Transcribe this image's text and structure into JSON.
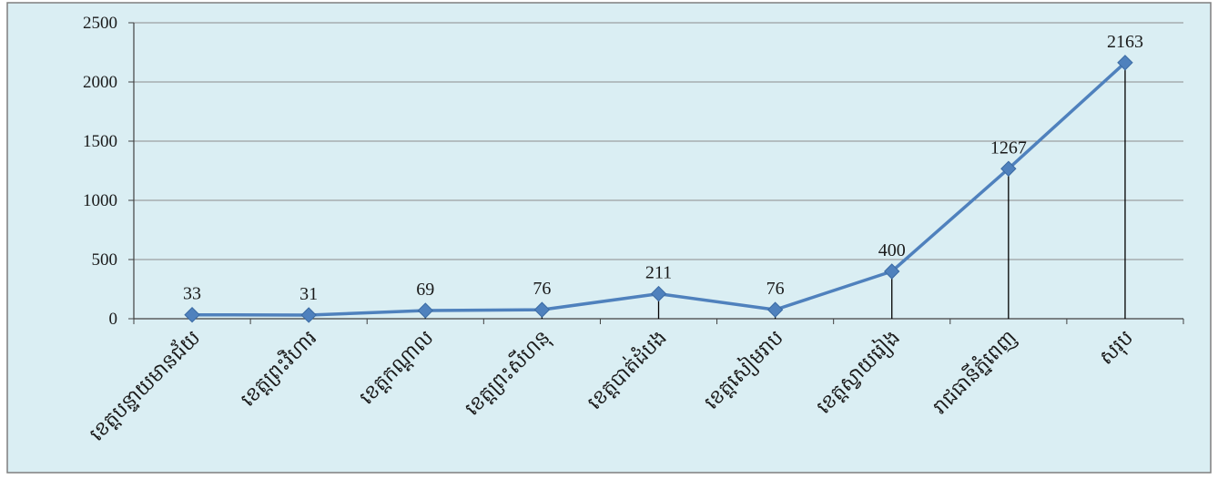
{
  "chart_data": {
    "type": "line",
    "title": "",
    "xlabel": "",
    "ylabel": "",
    "categories": [
      "ខេត្តបន្ទាយមានជ័យ",
      "ខេត្តព្រះវិហារ",
      "ខេត្តកណ្តាល",
      "ខេត្តព្រះសីហនុ",
      "ខេត្តបាត់ដំបង",
      "ខេត្តសៀមរាប",
      "ខេត្តស្វាយរៀង",
      "រាជធានីភ្នំពេញ",
      "សរុប"
    ],
    "series": [
      {
        "values": [
          33,
          31,
          69,
          76,
          211,
          76,
          400,
          1267,
          2163
        ]
      }
    ],
    "ylim": [
      0,
      2500
    ],
    "yticks": [
      0,
      500,
      1000,
      1500,
      2000,
      2500
    ],
    "grid": "horizontal",
    "drop_lines": true,
    "legend": "none",
    "colors": {
      "line": "#4f81bd",
      "marker": "#4f81bd",
      "plot_background": "#daeef3",
      "grid": "#8c8c8c",
      "drop_line": "#000000"
    }
  }
}
